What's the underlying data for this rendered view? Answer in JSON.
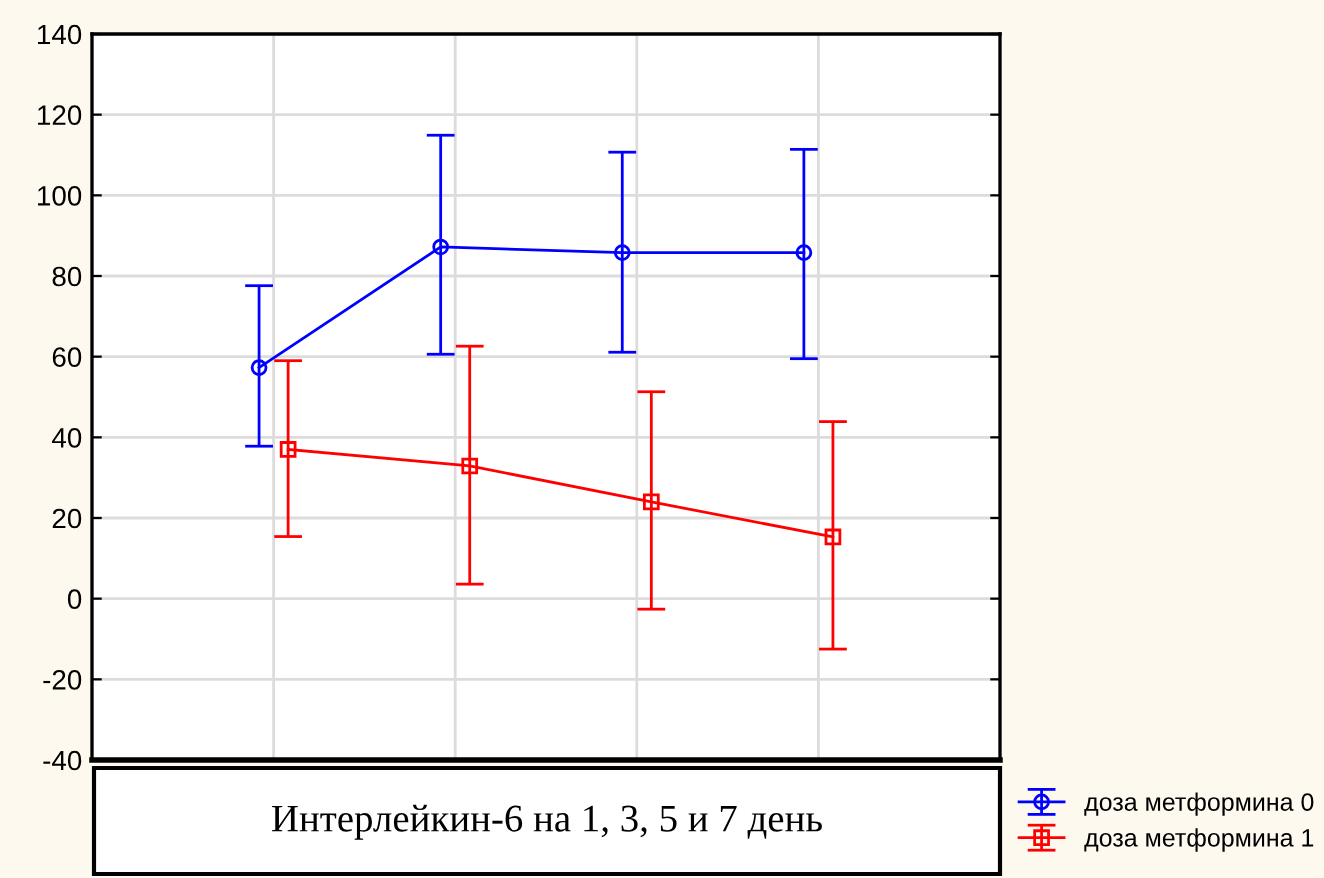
{
  "chart_data": {
    "type": "line",
    "categories": [
      null,
      null,
      null,
      null
    ],
    "series": [
      {
        "name": "доза метформина 0",
        "color": "#0000ff",
        "marker": "circle",
        "values": [
          57.3,
          87.2,
          85.8,
          85.8
        ],
        "errors": [
          [
            37.8,
            77.6
          ],
          [
            60.6,
            114.9
          ],
          [
            61.1,
            110.7
          ],
          [
            59.5,
            111.4
          ]
        ]
      },
      {
        "name": "доза метформина 1",
        "color": "#ff0000",
        "marker": "square",
        "values": [
          37.0,
          32.9,
          24.0,
          15.3
        ],
        "errors": [
          [
            15.4,
            59.0
          ],
          [
            3.6,
            62.6
          ],
          [
            -2.6,
            51.3
          ],
          [
            -12.5,
            43.9
          ]
        ]
      }
    ],
    "ylim": [
      -40,
      140
    ],
    "yticks": [
      -40,
      -20,
      0,
      20,
      40,
      60,
      80,
      100,
      120,
      140
    ],
    "grid": true,
    "legend": "bottom right",
    "tick_labels": "y",
    "annotations": [
      "Интерлейкин-6 на 1, 3, 5 и 7 день"
    ]
  }
}
